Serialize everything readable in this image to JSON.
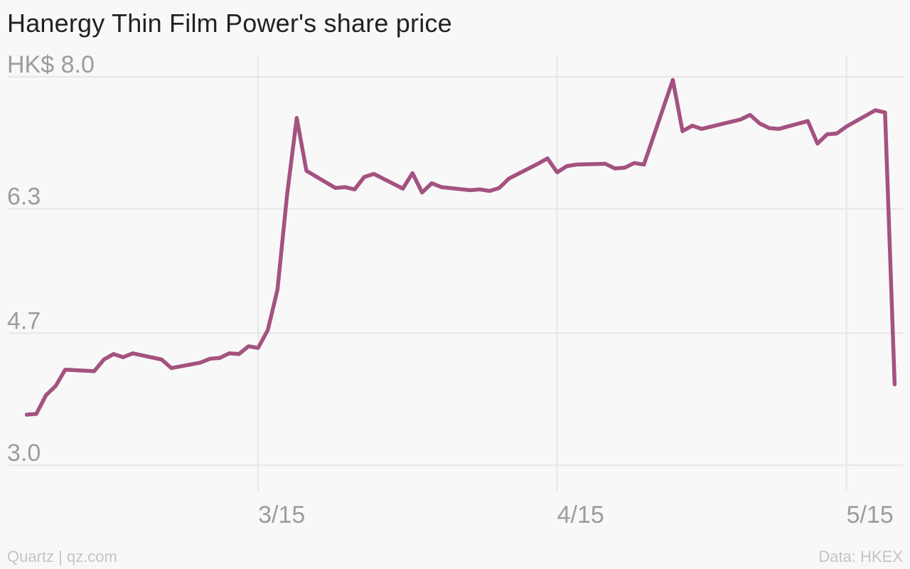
{
  "title": "Hanergy Thin Film Power's share price",
  "footer": {
    "credit": "Quartz | qz.com",
    "source": "Data: HKEX"
  },
  "chart_data": {
    "type": "line",
    "title": "Hanergy Thin Film Power's share price",
    "xlabel": "",
    "ylabel": "",
    "y_unit_prefix": "HK$",
    "ylim": [
      3.0,
      8.0
    ],
    "y_ticks": [
      {
        "value": 3.0,
        "label": "3.0"
      },
      {
        "value": 4.7,
        "label": "4.7"
      },
      {
        "value": 6.3,
        "label": "6.3"
      },
      {
        "value": 8.0,
        "label": "HK$ 8.0"
      }
    ],
    "xlim": [
      "2015-02-18",
      "2015-05-21"
    ],
    "x_ticks": [
      {
        "date": "2015-03-15",
        "label": "3/15"
      },
      {
        "date": "2015-04-15",
        "label": "4/15"
      },
      {
        "date": "2015-05-15",
        "label": "5/15"
      }
    ],
    "grid": true,
    "line_color": "#a4527f",
    "series": [
      {
        "x": [
          "2015-02-19",
          "2015-02-20",
          "2015-02-21",
          "2015-02-22",
          "2015-02-23",
          "2015-02-26",
          "2015-02-27",
          "2015-02-28",
          "2015-03-01",
          "2015-03-02",
          "2015-03-05",
          "2015-03-06",
          "2015-03-09",
          "2015-03-10",
          "2015-03-11",
          "2015-03-12",
          "2015-03-13",
          "2015-03-14",
          "2015-03-15",
          "2015-03-16",
          "2015-03-17",
          "2015-03-18",
          "2015-03-19",
          "2015-03-20",
          "2015-03-23",
          "2015-03-24",
          "2015-03-25",
          "2015-03-26",
          "2015-03-27",
          "2015-03-30",
          "2015-03-31",
          "2015-04-01",
          "2015-04-02",
          "2015-04-03",
          "2015-04-06",
          "2015-04-07",
          "2015-04-08",
          "2015-04-09",
          "2015-04-10",
          "2015-04-13",
          "2015-04-14",
          "2015-04-15",
          "2015-04-16",
          "2015-04-17",
          "2015-04-20",
          "2015-04-21",
          "2015-04-22",
          "2015-04-23",
          "2015-04-24",
          "2015-04-27",
          "2015-04-28",
          "2015-04-29",
          "2015-04-30",
          "2015-05-01",
          "2015-05-04",
          "2015-05-05",
          "2015-05-06",
          "2015-05-07",
          "2015-05-08",
          "2015-05-11",
          "2015-05-12",
          "2015-05-13",
          "2015-05-14",
          "2015-05-15",
          "2015-05-18",
          "2015-05-19",
          "2015-05-20"
        ],
        "y": [
          3.65,
          3.66,
          3.9,
          4.02,
          4.23,
          4.21,
          4.36,
          4.43,
          4.39,
          4.44,
          4.36,
          4.25,
          4.32,
          4.37,
          4.38,
          4.44,
          4.43,
          4.53,
          4.51,
          4.74,
          5.26,
          6.48,
          7.47,
          6.79,
          6.57,
          6.58,
          6.55,
          6.71,
          6.75,
          6.56,
          6.76,
          6.51,
          6.63,
          6.58,
          6.54,
          6.55,
          6.53,
          6.57,
          6.69,
          6.88,
          6.95,
          6.77,
          6.85,
          6.87,
          6.88,
          6.82,
          6.83,
          6.89,
          6.87,
          7.96,
          7.3,
          7.37,
          7.33,
          7.36,
          7.45,
          7.51,
          7.4,
          7.34,
          7.33,
          7.43,
          7.14,
          7.26,
          7.27,
          7.36,
          7.57,
          7.54,
          4.04
        ]
      }
    ]
  }
}
